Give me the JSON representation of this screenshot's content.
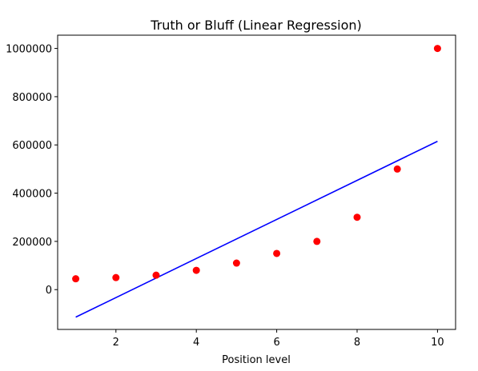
{
  "chart_data": {
    "type": "scatter",
    "title": "Truth or Bluff (Linear Regression)",
    "xlabel": "Position level",
    "ylabel": "",
    "xlim": [
      0.55,
      10.45
    ],
    "ylim": [
      -165000,
      1055000
    ],
    "xticks": [
      2,
      4,
      6,
      8,
      10
    ],
    "yticks": [
      0,
      200000,
      400000,
      600000,
      800000,
      1000000
    ],
    "grid": false,
    "colors": {
      "points": "#ff0000",
      "line": "#0000ff"
    },
    "series": [
      {
        "kind": "scatter",
        "x": [
          1,
          2,
          3,
          4,
          5,
          6,
          7,
          8,
          9,
          10
        ],
        "y": [
          45000,
          50000,
          60000,
          80000,
          110000,
          150000,
          200000,
          300000,
          500000,
          1000000
        ]
      },
      {
        "kind": "line",
        "x": [
          1,
          10
        ],
        "y": [
          -114000,
          615000
        ]
      }
    ]
  }
}
